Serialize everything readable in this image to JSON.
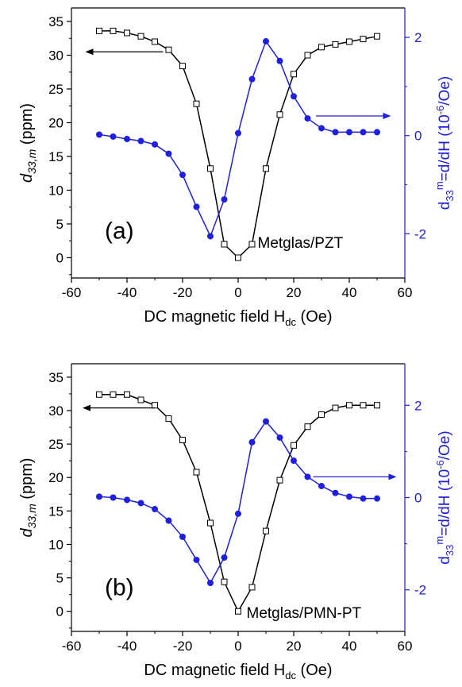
{
  "chart_data": [
    {
      "type": "line",
      "panel_label": "(a)",
      "annotation": "Metglas/PZT",
      "xlabel_main": "DC magnetic field H",
      "xlabel_sub": "dc",
      "xlabel_unit": "(Oe)",
      "ylabel_left_main": "d",
      "ylabel_left_sub": "33,m",
      "ylabel_left_unit": "(ppm)",
      "ylabel_right_d": "d",
      "ylabel_right_sub": "33",
      "ylabel_right_sup": "m",
      "ylabel_right_mid": "=d",
      "ylabel_right_tail": "/dH (10",
      "ylabel_right_exp": "-6",
      "ylabel_right_end": "/Oe)",
      "xlim": [
        -60,
        60
      ],
      "xticks": [
        -60,
        -40,
        -20,
        0,
        20,
        40,
        60
      ],
      "ylim_left": [
        -3,
        37
      ],
      "yticks_left": [
        0,
        5,
        10,
        15,
        20,
        25,
        30,
        35
      ],
      "ylim_right": [
        -2.9,
        2.6
      ],
      "yticks_right": [
        -2,
        0,
        2
      ],
      "arrow_left": {
        "x_from": -27,
        "x_to": -55,
        "y": 30.5
      },
      "arrow_right": {
        "x_from": 28,
        "x_to": 55,
        "y": 0.4
      },
      "series": [
        {
          "axis": "left",
          "color": "#000000",
          "marker": "open-square",
          "x": [
            -50,
            -45,
            -40,
            -35,
            -30,
            -25,
            -20,
            -15,
            -10,
            -5,
            0,
            5,
            10,
            15,
            20,
            25,
            30,
            35,
            40,
            45,
            50
          ],
          "y": [
            33.6,
            33.6,
            33.3,
            32.8,
            32.0,
            30.8,
            28.4,
            22.8,
            13.2,
            2.0,
            0.0,
            2.0,
            13.2,
            21.2,
            27.2,
            30.0,
            31.2,
            31.6,
            32.0,
            32.4,
            32.8
          ]
        },
        {
          "axis": "right",
          "color": "#1f1fe0",
          "marker": "filled-circle",
          "x": [
            -50,
            -45,
            -40,
            -35,
            -30,
            -25,
            -20,
            -15,
            -10,
            -5,
            0,
            5,
            10,
            15,
            20,
            25,
            30,
            35,
            40,
            45,
            50
          ],
          "y": [
            0.02,
            -0.02,
            -0.07,
            -0.11,
            -0.18,
            -0.37,
            -0.8,
            -1.45,
            -2.05,
            -1.3,
            0.05,
            1.15,
            1.92,
            1.52,
            0.8,
            0.35,
            0.15,
            0.07,
            0.07,
            0.07,
            0.07
          ]
        }
      ]
    },
    {
      "type": "line",
      "panel_label": "(b)",
      "annotation": "Metglas/PMN-PT",
      "xlabel_main": "DC magnetic field H",
      "xlabel_sub": "dc",
      "xlabel_unit": "(Oe)",
      "ylabel_left_main": "d",
      "ylabel_left_sub": "33,m",
      "ylabel_left_unit": "(ppm)",
      "ylabel_right_d": "d",
      "ylabel_right_sub": "33",
      "ylabel_right_sup": "m",
      "ylabel_right_mid": "=d",
      "ylabel_right_tail": "/dH (10",
      "ylabel_right_exp": "-6",
      "ylabel_right_end": "/Oe)",
      "xlim": [
        -60,
        60
      ],
      "xticks": [
        -60,
        -40,
        -20,
        0,
        20,
        40,
        60
      ],
      "ylim_left": [
        -3,
        37
      ],
      "yticks_left": [
        0,
        5,
        10,
        15,
        20,
        25,
        30,
        35
      ],
      "ylim_right": [
        -2.9,
        2.9
      ],
      "yticks_right": [
        -2,
        0,
        2
      ],
      "arrow_left": {
        "x_from": -30,
        "x_to": -56,
        "y": 30.4
      },
      "arrow_right": {
        "x_from": 27,
        "x_to": 57,
        "y": 0.45
      },
      "series": [
        {
          "axis": "left",
          "color": "#000000",
          "marker": "open-square",
          "x": [
            -50,
            -45,
            -40,
            -35,
            -30,
            -25,
            -20,
            -15,
            -10,
            -5,
            0,
            5,
            10,
            15,
            20,
            25,
            30,
            35,
            40,
            45,
            50
          ],
          "y": [
            32.4,
            32.4,
            32.4,
            31.6,
            30.8,
            28.8,
            25.6,
            20.8,
            13.2,
            4.4,
            0.0,
            3.6,
            12.0,
            19.6,
            24.8,
            27.6,
            29.4,
            30.4,
            30.8,
            30.8,
            30.8
          ]
        },
        {
          "axis": "right",
          "color": "#1f1fe0",
          "marker": "filled-circle",
          "x": [
            -50,
            -45,
            -40,
            -35,
            -30,
            -25,
            -20,
            -15,
            -10,
            -5,
            0,
            5,
            10,
            15,
            20,
            25,
            30,
            35,
            40,
            45,
            50
          ],
          "y": [
            0.02,
            0.0,
            -0.05,
            -0.12,
            -0.25,
            -0.5,
            -0.85,
            -1.35,
            -1.85,
            -1.3,
            -0.35,
            1.2,
            1.65,
            1.3,
            0.8,
            0.45,
            0.25,
            0.1,
            0.02,
            -0.02,
            -0.02
          ]
        }
      ]
    }
  ]
}
